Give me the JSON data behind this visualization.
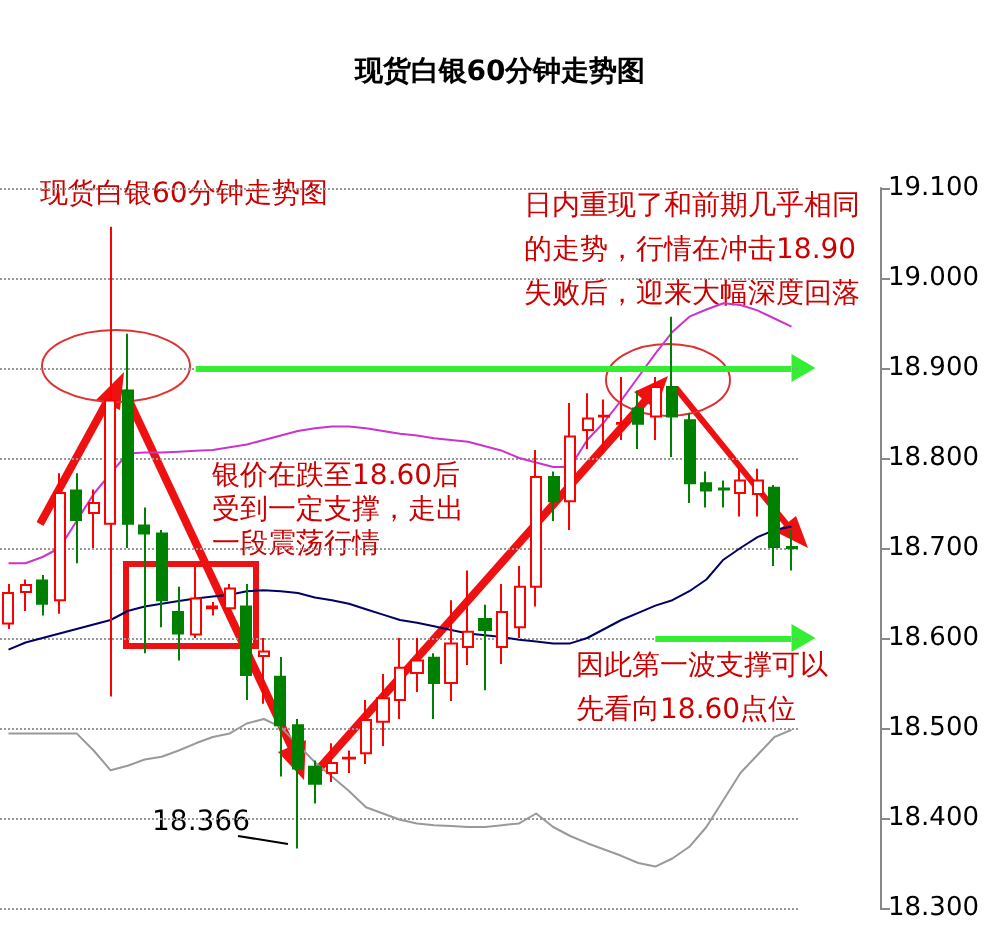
{
  "chart_data": {
    "type": "candlestick",
    "title": "现货白银60分钟走势图",
    "categories": [
      null,
      null,
      null,
      null,
      null,
      null,
      null,
      null,
      null,
      null,
      null,
      null,
      null,
      null,
      null,
      null,
      null,
      null,
      null,
      null,
      null,
      null,
      null,
      null,
      null,
      null,
      null,
      null,
      null,
      null,
      null,
      null,
      null,
      null,
      null,
      null,
      null,
      null,
      null,
      null,
      null,
      null,
      null,
      null,
      null,
      null,
      null
    ],
    "series": [
      {
        "type": "line",
        "color": "#cc33cc",
        "values": [
          18.683,
          18.683,
          18.69,
          18.7,
          18.73,
          18.76,
          18.783,
          18.805,
          18.806,
          18.806,
          18.807,
          18.808,
          18.809,
          18.812,
          18.815,
          18.82,
          18.825,
          18.83,
          18.833,
          18.835,
          18.835,
          18.833,
          18.83,
          18.827,
          18.825,
          18.822,
          18.82,
          18.818,
          18.813,
          18.808,
          18.8,
          18.795,
          18.79,
          18.79,
          18.82,
          18.84,
          18.864,
          18.89,
          18.916,
          18.94,
          18.957,
          18.965,
          18.972,
          18.97,
          18.964,
          18.955,
          18.946
        ]
      },
      {
        "type": "line",
        "color": "#000066",
        "values": [
          18.587,
          18.595,
          18.6,
          18.605,
          18.61,
          18.615,
          18.62,
          18.63,
          18.635,
          18.638,
          18.641,
          18.644,
          18.646,
          18.648,
          18.652,
          18.653,
          18.652,
          18.65,
          18.645,
          18.642,
          18.638,
          18.632,
          18.626,
          18.62,
          18.617,
          18.613,
          18.609,
          18.605,
          18.603,
          18.601,
          18.598,
          18.596,
          18.594,
          18.594,
          18.6,
          18.61,
          18.62,
          18.628,
          18.636,
          18.642,
          18.652,
          18.665,
          18.687,
          18.7,
          18.712,
          18.72,
          18.724
        ]
      },
      {
        "type": "line",
        "color": "#999999",
        "values": [
          18.494,
          18.494,
          18.494,
          18.494,
          18.494,
          18.475,
          18.453,
          18.458,
          18.465,
          18.468,
          18.475,
          18.483,
          18.49,
          18.494,
          18.505,
          18.51,
          18.501,
          null,
          18.462,
          18.446,
          18.43,
          18.412,
          18.405,
          18.398,
          18.394,
          18.392,
          18.391,
          18.39,
          18.39,
          18.392,
          18.394,
          18.405,
          18.39,
          18.38,
          18.372,
          18.365,
          18.358,
          18.35,
          18.346,
          18.355,
          18.368,
          18.39,
          18.42,
          18.45,
          18.47,
          18.49,
          18.498
        ]
      },
      {
        "ohlc": [
          [
            18.616,
            18.66,
            18.61,
            18.65
          ],
          [
            18.651,
            18.665,
            18.63,
            18.659
          ],
          [
            18.664,
            18.67,
            18.625,
            18.638
          ],
          [
            18.642,
            18.783,
            18.627,
            18.761
          ],
          [
            18.764,
            18.783,
            18.683,
            18.731
          ],
          [
            18.739,
            18.765,
            18.7,
            18.75
          ],
          [
            18.727,
            19.057,
            18.535,
            18.864
          ],
          [
            18.875,
            18.938,
            18.7,
            18.727
          ],
          [
            18.725,
            18.745,
            18.583,
            18.716
          ],
          [
            18.716,
            18.72,
            18.612,
            18.642
          ],
          [
            18.629,
            18.657,
            18.575,
            18.605
          ],
          [
            18.604,
            18.683,
            18.6,
            18.644
          ],
          [
            18.633,
            18.64,
            18.625,
            18.635
          ],
          [
            18.633,
            18.66,
            18.63,
            18.655
          ],
          [
            18.635,
            18.66,
            18.531,
            18.559
          ],
          [
            18.58,
            18.6,
            18.527,
            18.585
          ],
          [
            18.557,
            18.579,
            18.446,
            18.503
          ],
          [
            18.503,
            18.51,
            18.366,
            18.455
          ],
          [
            18.457,
            18.464,
            18.416,
            18.438
          ],
          [
            18.45,
            18.483,
            18.44,
            18.461
          ],
          [
            18.466,
            18.475,
            18.45,
            18.467
          ],
          [
            18.472,
            18.531,
            18.46,
            18.509
          ],
          [
            18.507,
            18.56,
            18.48,
            18.533
          ],
          [
            18.531,
            18.6,
            18.51,
            18.567
          ],
          [
            18.561,
            18.6,
            18.54,
            18.575
          ],
          [
            18.578,
            18.583,
            18.51,
            18.55
          ],
          [
            18.55,
            18.642,
            18.53,
            18.594
          ],
          [
            18.59,
            18.675,
            18.57,
            18.607
          ],
          [
            18.621,
            18.637,
            18.542,
            18.609
          ],
          [
            18.59,
            18.66,
            18.571,
            18.629
          ],
          [
            18.612,
            18.68,
            18.6,
            18.657
          ],
          [
            18.657,
            18.809,
            18.635,
            18.779
          ],
          [
            18.779,
            18.785,
            18.73,
            18.752
          ],
          [
            18.752,
            18.861,
            18.72,
            18.824
          ],
          [
            18.831,
            18.872,
            18.81,
            18.844
          ],
          [
            18.846,
            18.865,
            18.805,
            18.847
          ],
          [
            18.838,
            18.89,
            18.82,
            18.839
          ],
          [
            18.855,
            18.875,
            18.81,
            18.838
          ],
          [
            18.846,
            18.89,
            18.82,
            18.879
          ],
          [
            18.879,
            18.957,
            18.801,
            18.846
          ],
          [
            18.842,
            18.85,
            18.75,
            18.772
          ],
          [
            18.772,
            18.785,
            18.745,
            18.764
          ],
          [
            18.766,
            18.775,
            18.745,
            18.765
          ],
          [
            18.761,
            18.79,
            18.735,
            18.775
          ],
          [
            18.76,
            18.788,
            18.735,
            18.775
          ],
          [
            18.767,
            18.77,
            18.68,
            18.701
          ],
          [
            18.701,
            18.72,
            18.675,
            18.7
          ]
        ],
        "colors": [
          "#ff0000",
          "#ff0000",
          "#008000",
          "#ff0000",
          "#008000",
          "#ff0000",
          "#ff0000",
          "#008000",
          "#008000",
          "#008000",
          "#008000",
          "#ff0000",
          "#ff0000",
          "#ff0000",
          "#008000",
          "#ff0000",
          "#008000",
          "#008000",
          "#008000",
          "#ff0000",
          "#ff0000",
          "#ff0000",
          "#ff0000",
          "#ff0000",
          "#ff0000",
          "#008000",
          "#ff0000",
          "#ff0000",
          "#008000",
          "#ff0000",
          "#ff0000",
          "#ff0000",
          "#008000",
          "#ff0000",
          "#ff0000",
          "#ff0000",
          "#ff0000",
          "#008000",
          "#ff0000",
          "#008000",
          "#008000",
          "#008000",
          "#008000",
          "#ff0000",
          "#ff0000",
          "#008000",
          "#008000"
        ]
      }
    ],
    "ylim": [
      18.3,
      19.1
    ],
    "yticks": [
      {
        "value": 18.3,
        "label": "18.300"
      },
      {
        "value": 18.4,
        "label": "18.400"
      },
      {
        "value": 18.5,
        "label": "18.500"
      },
      {
        "value": 18.6,
        "label": "18.600"
      },
      {
        "value": 18.7,
        "label": "18.700"
      },
      {
        "value": 18.8,
        "label": "18.800"
      },
      {
        "value": 18.9,
        "label": "18.900"
      },
      {
        "value": 19.0,
        "label": "19.000"
      },
      {
        "value": 19.1,
        "label": "19.100"
      }
    ],
    "grid": "y",
    "tick_labels": "y",
    "marker": "none",
    "line_style": "solid",
    "ref_lines": [
      {
        "axis": "y",
        "value": 18.9,
        "color": "#33ee33"
      },
      {
        "axis": "y",
        "value": 18.6,
        "color": "#33ee33"
      }
    ],
    "annotations": [
      "现货白银60分钟走势图",
      "银价在跌至18.60后受到一定支撑，走出一段震荡行情",
      "日内重现了和前期几乎相同的走势，行情在冲击18.90失败后，迎来大幅深度回落",
      "因此第一波支撑可以先看向18.60点位",
      "18.366"
    ]
  }
}
